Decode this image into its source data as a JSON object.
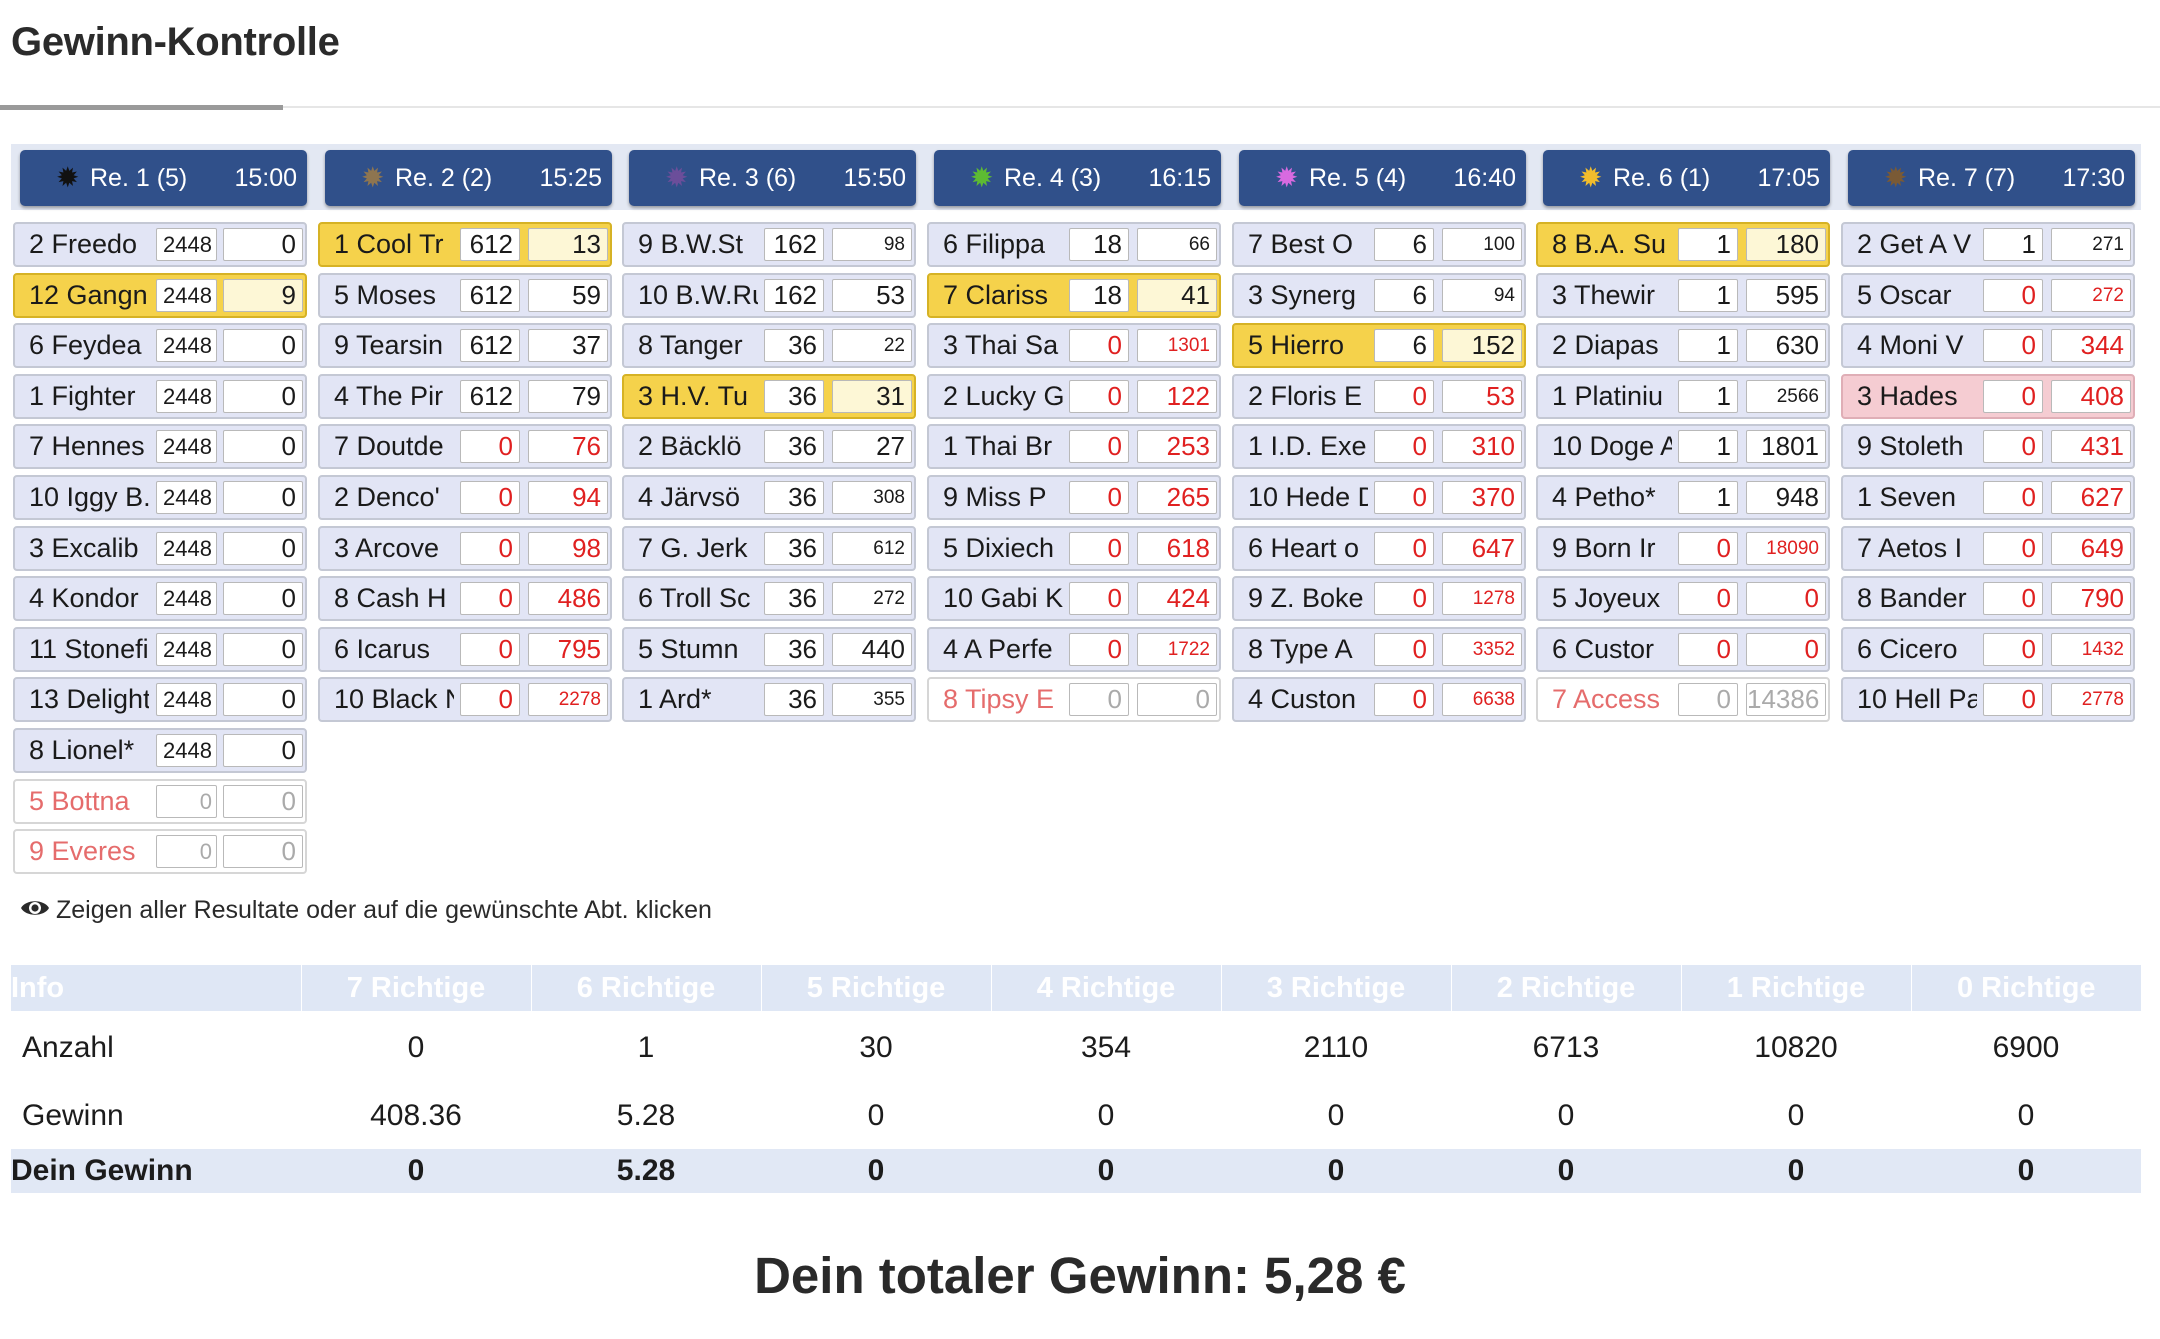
{
  "page": {
    "title": "Gewinn-Kontrolle"
  },
  "races": [
    {
      "label": "Re. 1 (5)",
      "time": "15:00",
      "dot": "#111111",
      "rows": [
        {
          "name": "2 Freedo",
          "v1": "2448",
          "v2": "0"
        },
        {
          "name": "12 Gangn",
          "v1": "2448",
          "v2": "9",
          "state": "hit"
        },
        {
          "name": "6 Feydea",
          "v1": "2448",
          "v2": "0"
        },
        {
          "name": "1 Fighter",
          "v1": "2448",
          "v2": "0"
        },
        {
          "name": "7 Hennes",
          "v1": "2448",
          "v2": "0"
        },
        {
          "name": "10 Iggy B.",
          "v1": "2448",
          "v2": "0"
        },
        {
          "name": "3 Excalib",
          "v1": "2448",
          "v2": "0"
        },
        {
          "name": "4 Kondor",
          "v1": "2448",
          "v2": "0"
        },
        {
          "name": "11 Stonefi",
          "v1": "2448",
          "v2": "0"
        },
        {
          "name": "13 Delight",
          "v1": "2448",
          "v2": "0"
        },
        {
          "name": "8 Lionel*",
          "v1": "2448",
          "v2": "0"
        },
        {
          "name": "5 Bottna",
          "v1": "0",
          "v2": "0",
          "state": "out"
        },
        {
          "name": "9 Everes",
          "v1": "0",
          "v2": "0",
          "state": "out"
        }
      ]
    },
    {
      "label": "Re. 2 (2)",
      "time": "15:25",
      "dot": "#8e7550",
      "rows": [
        {
          "name": "1 Cool Tr",
          "v1": "612",
          "v2": "13",
          "state": "hit"
        },
        {
          "name": "5 Moses",
          "v1": "612",
          "v2": "59"
        },
        {
          "name": "9 Tearsin",
          "v1": "612",
          "v2": "37"
        },
        {
          "name": "4 The Pir",
          "v1": "612",
          "v2": "79"
        },
        {
          "name": "7 Doutde",
          "v1": "0",
          "v2": "76",
          "red": true
        },
        {
          "name": "2 Denco'",
          "v1": "0",
          "v2": "94",
          "red": true
        },
        {
          "name": "3 Arcove",
          "v1": "0",
          "v2": "98",
          "red": true
        },
        {
          "name": "8 Cash H",
          "v1": "0",
          "v2": "486",
          "red": true
        },
        {
          "name": "6 Icarus",
          "v1": "0",
          "v2": "795",
          "red": true
        },
        {
          "name": "10 Black N",
          "v1": "0",
          "v2": "2278",
          "red": true
        }
      ]
    },
    {
      "label": "Re. 3 (6)",
      "time": "15:50",
      "dot": "#6b4e9a",
      "rows": [
        {
          "name": "9 B.W.St",
          "v1": "162",
          "v2": "98"
        },
        {
          "name": "10 B.W.Ru",
          "v1": "162",
          "v2": "53"
        },
        {
          "name": "8 Tanger",
          "v1": "36",
          "v2": "22"
        },
        {
          "name": "3 H.V. Tu",
          "v1": "36",
          "v2": "31",
          "state": "hit"
        },
        {
          "name": "2 Bäcklö",
          "v1": "36",
          "v2": "27"
        },
        {
          "name": "4 Järvsö",
          "v1": "36",
          "v2": "308"
        },
        {
          "name": "7 G. Jerk",
          "v1": "36",
          "v2": "612"
        },
        {
          "name": "6 Troll Sc",
          "v1": "36",
          "v2": "272"
        },
        {
          "name": "5 Stumn",
          "v1": "36",
          "v2": "440"
        },
        {
          "name": "1 Ard*",
          "v1": "36",
          "v2": "355"
        }
      ]
    },
    {
      "label": "Re. 4 (3)",
      "time": "16:15",
      "dot": "#5dbb32",
      "rows": [
        {
          "name": "6 Filippa",
          "v1": "18",
          "v2": "66"
        },
        {
          "name": "7 Clariss",
          "v1": "18",
          "v2": "41",
          "state": "hit"
        },
        {
          "name": "3 Thai Sa",
          "v1": "0",
          "v2": "1301",
          "red": true
        },
        {
          "name": "2 Lucky G",
          "v1": "0",
          "v2": "122",
          "red": true
        },
        {
          "name": "1 Thai Br",
          "v1": "0",
          "v2": "253",
          "red": true
        },
        {
          "name": "9 Miss P",
          "v1": "0",
          "v2": "265",
          "red": true
        },
        {
          "name": "5 Dixiech",
          "v1": "0",
          "v2": "618",
          "red": true
        },
        {
          "name": "10 Gabi K",
          "v1": "0",
          "v2": "424",
          "red": true
        },
        {
          "name": "4 A Perfe",
          "v1": "0",
          "v2": "1722",
          "red": true
        },
        {
          "name": "8 Tipsy E",
          "v1": "0",
          "v2": "0",
          "state": "out"
        }
      ]
    },
    {
      "label": "Re. 5 (4)",
      "time": "16:40",
      "dot": "#d86ae0",
      "rows": [
        {
          "name": "7 Best O",
          "v1": "6",
          "v2": "100"
        },
        {
          "name": "3 Synerg",
          "v1": "6",
          "v2": "94"
        },
        {
          "name": "5 Hierro",
          "v1": "6",
          "v2": "152",
          "state": "hit"
        },
        {
          "name": "2 Floris E",
          "v1": "0",
          "v2": "53",
          "red": true
        },
        {
          "name": "1 I.D. Exe",
          "v1": "0",
          "v2": "310",
          "red": true
        },
        {
          "name": "10 Hede D",
          "v1": "0",
          "v2": "370",
          "red": true
        },
        {
          "name": "6 Heart o",
          "v1": "0",
          "v2": "647",
          "red": true
        },
        {
          "name": "9 Z. Boke",
          "v1": "0",
          "v2": "1278",
          "red": true
        },
        {
          "name": "8 Type A",
          "v1": "0",
          "v2": "3352",
          "red": true
        },
        {
          "name": "4 Custon",
          "v1": "0",
          "v2": "6638",
          "red": true
        }
      ]
    },
    {
      "label": "Re. 6 (1)",
      "time": "17:05",
      "dot": "#f2bd2c",
      "rows": [
        {
          "name": "8 B.A. Su",
          "v1": "1",
          "v2": "180",
          "state": "hit"
        },
        {
          "name": "3 Thewir",
          "v1": "1",
          "v2": "595"
        },
        {
          "name": "2 Diapas",
          "v1": "1",
          "v2": "630"
        },
        {
          "name": "1 Platiniu",
          "v1": "1",
          "v2": "2566"
        },
        {
          "name": "10 Doge A",
          "v1": "1",
          "v2": "1801"
        },
        {
          "name": "4 Petho*",
          "v1": "1",
          "v2": "948"
        },
        {
          "name": "9 Born Ir",
          "v1": "0",
          "v2": "18090",
          "red": true
        },
        {
          "name": "5 Joyeux",
          "v1": "0",
          "v2": "0",
          "red": true
        },
        {
          "name": "6 Custor",
          "v1": "0",
          "v2": "0",
          "red": true
        },
        {
          "name": "7 Access",
          "v1": "0",
          "v2": "14386",
          "state": "out"
        }
      ]
    },
    {
      "label": "Re. 7 (7)",
      "time": "17:30",
      "dot": "#7a5a35",
      "rows": [
        {
          "name": "2 Get A V",
          "v1": "1",
          "v2": "271"
        },
        {
          "name": "5 Oscar",
          "v1": "0",
          "v2": "272",
          "red": true
        },
        {
          "name": "4 Moni V",
          "v1": "0",
          "v2": "344",
          "red": true
        },
        {
          "name": "3 Hades",
          "v1": "0",
          "v2": "408",
          "red": true,
          "state": "pink"
        },
        {
          "name": "9 Stoleth",
          "v1": "0",
          "v2": "431",
          "red": true
        },
        {
          "name": "1 Seven",
          "v1": "0",
          "v2": "627",
          "red": true
        },
        {
          "name": "7 Aetos I",
          "v1": "0",
          "v2": "649",
          "red": true
        },
        {
          "name": "8 Bander",
          "v1": "0",
          "v2": "790",
          "red": true
        },
        {
          "name": "6 Cicero",
          "v1": "0",
          "v2": "1432",
          "red": true
        },
        {
          "name": "10 Hell Pa",
          "v1": "0",
          "v2": "2778",
          "red": true
        }
      ]
    }
  ],
  "hint": "Zeigen aller Resultate oder auf die gewünschte Abt. klicken",
  "summary": {
    "headers": [
      "Info",
      "7 Richtige",
      "6 Richtige",
      "5 Richtige",
      "4 Richtige",
      "3 Richtige",
      "2 Richtige",
      "1 Richtige",
      "0 Richtige"
    ],
    "rows": [
      {
        "label": "Anzahl",
        "values": [
          "0",
          "1",
          "30",
          "354",
          "2110",
          "6713",
          "10820",
          "6900"
        ]
      },
      {
        "label": "Gewinn",
        "values": [
          "408.36",
          "5.28",
          "0",
          "0",
          "0",
          "0",
          "0",
          "0"
        ]
      },
      {
        "label": "Dein Gewinn",
        "values": [
          "0",
          "5.28",
          "0",
          "0",
          "0",
          "0",
          "0",
          "0"
        ]
      }
    ]
  },
  "total": "Dein totaler Gewinn: 5,28 €"
}
